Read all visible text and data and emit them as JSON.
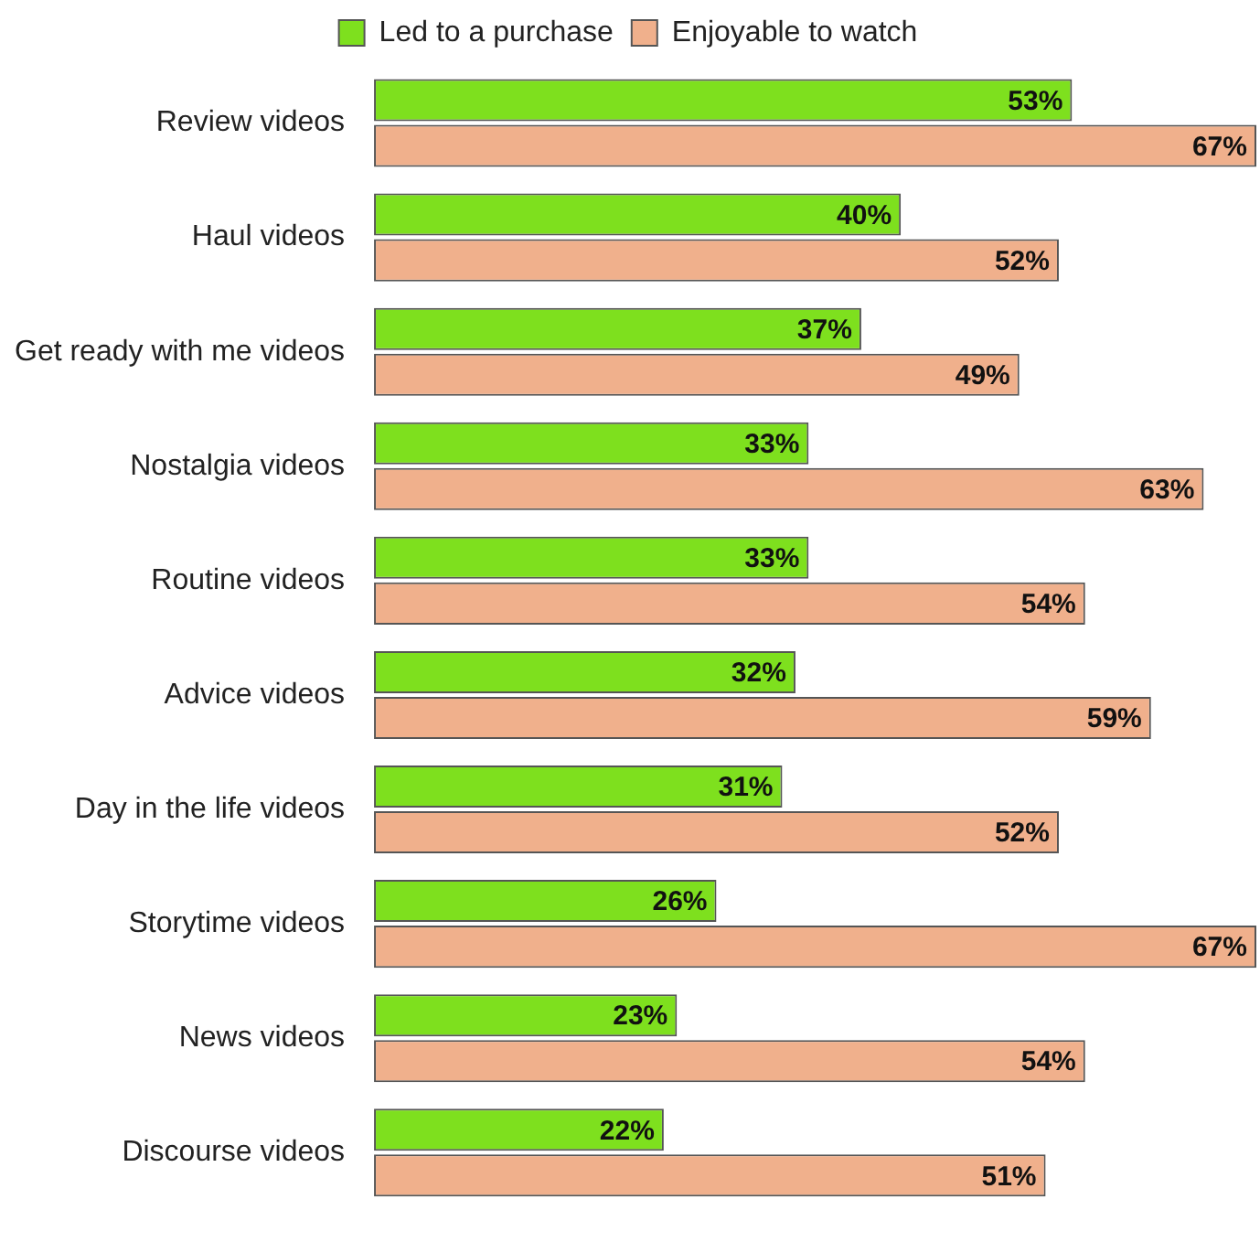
{
  "chart_data": {
    "type": "bar",
    "orientation": "horizontal",
    "categories": [
      "Review videos",
      "Haul videos",
      "Get ready with me videos",
      "Nostalgia videos",
      "Routine videos",
      "Advice videos",
      "Day in the life videos",
      "Storytime videos",
      "News videos",
      "Discourse videos"
    ],
    "series": [
      {
        "name": "Led to a purchase",
        "color": "#7ee01e",
        "values": [
          53,
          40,
          37,
          33,
          33,
          32,
          31,
          26,
          23,
          22
        ],
        "value_labels": [
          "53%",
          "40%",
          "37%",
          "33%",
          "33%",
          "32%",
          "31%",
          "26%",
          "23%",
          "22%"
        ]
      },
      {
        "name": "Enjoyable to watch",
        "color": "#f0b08c",
        "values": [
          67,
          52,
          49,
          63,
          54,
          59,
          52,
          67,
          54,
          51
        ],
        "value_labels": [
          "67%",
          "52%",
          "49%",
          "63%",
          "54%",
          "59%",
          "52%",
          "67%",
          "54%",
          "51%"
        ]
      }
    ],
    "legend": "top",
    "tick_labels": "y"
  }
}
